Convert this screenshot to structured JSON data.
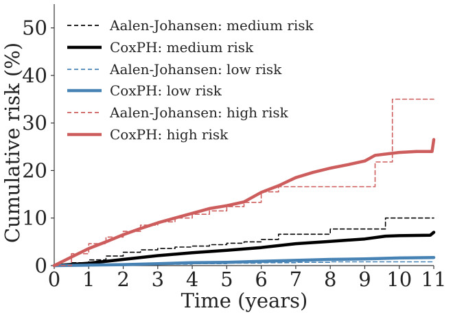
{
  "chart_data": {
    "type": "line",
    "xlabel": "Time (years)",
    "ylabel": "Cumulative risk (%)",
    "xlim": [
      0,
      11
    ],
    "ylim": [
      0,
      55
    ],
    "xticks": [
      "0",
      "1",
      "2",
      "3",
      "4",
      "5",
      "6",
      "7",
      "8",
      "9",
      "10",
      "11"
    ],
    "yticks": [
      "0",
      "10",
      "20",
      "30",
      "40",
      "50"
    ],
    "grid": false,
    "legend_position": "top-left",
    "series": [
      {
        "name": "Aalen-Johansen: medium risk",
        "color": "#000000",
        "style": "dashed",
        "step": true,
        "x": [
          0,
          0.5,
          1.0,
          1.5,
          2.0,
          2.5,
          3.0,
          3.5,
          4.0,
          4.5,
          5.0,
          5.5,
          6.0,
          6.5,
          7.0,
          7.5,
          8.0,
          8.5,
          9.0,
          9.6,
          10.0,
          11.0
        ],
        "y": [
          0,
          0.6,
          1.2,
          2.0,
          2.8,
          3.3,
          3.6,
          3.9,
          4.1,
          4.4,
          4.7,
          5.0,
          5.5,
          6.6,
          6.6,
          6.6,
          7.7,
          7.7,
          7.7,
          10.0,
          10.0,
          10.0
        ]
      },
      {
        "name": "CoxPH: medium risk",
        "color": "#000000",
        "style": "solid",
        "step": false,
        "x": [
          0,
          1,
          2,
          3,
          4,
          5,
          6,
          7,
          8,
          9,
          9.6,
          10,
          10.9,
          11
        ],
        "y": [
          0,
          0.5,
          1.3,
          2.1,
          2.7,
          3.2,
          3.8,
          4.6,
          5.1,
          5.6,
          6.2,
          6.3,
          6.4,
          7.0
        ]
      },
      {
        "name": "Aalen-Johansen: low risk",
        "color": "#4682b4",
        "style": "dashed",
        "step": true,
        "x": [
          0,
          1,
          2,
          3,
          4,
          5,
          6,
          7,
          8,
          9,
          10,
          11
        ],
        "y": [
          0,
          0.1,
          0.2,
          0.3,
          0.4,
          0.5,
          0.6,
          0.7,
          0.8,
          0.8,
          0.8,
          0.8
        ]
      },
      {
        "name": "CoxPH: low risk",
        "color": "#4682b4",
        "style": "solid",
        "step": false,
        "x": [
          0,
          1,
          2,
          3,
          4,
          5,
          6,
          7,
          8,
          9,
          10,
          11
        ],
        "y": [
          0,
          0.1,
          0.2,
          0.4,
          0.6,
          0.7,
          0.9,
          1.1,
          1.3,
          1.4,
          1.6,
          1.7
        ]
      },
      {
        "name": "Aalen-Johansen: high risk",
        "color": "#cd5c5c",
        "style": "dashed",
        "step": true,
        "x": [
          0,
          0.5,
          1.0,
          1.5,
          2.0,
          2.5,
          3.0,
          3.5,
          4.0,
          4.5,
          5.0,
          5.5,
          6.0,
          6.5,
          7.0,
          7.5,
          8.0,
          8.9,
          9.3,
          9.8,
          11.0
        ],
        "y": [
          0,
          2.5,
          4.6,
          6.0,
          7.2,
          8.5,
          9.2,
          10.0,
          10.8,
          11.5,
          12.4,
          13.3,
          15.5,
          16.6,
          16.6,
          16.6,
          16.6,
          16.6,
          21.8,
          35.0,
          35.0
        ]
      },
      {
        "name": "CoxPH: high risk",
        "color": "#cd5c5c",
        "style": "solid",
        "step": false,
        "x": [
          0,
          0.5,
          1,
          1.5,
          2,
          2.5,
          3,
          3.5,
          4,
          4.5,
          5,
          5.5,
          6,
          6.5,
          7,
          7.5,
          8,
          8.5,
          9,
          9.3,
          10,
          10.5,
          10.95,
          11
        ],
        "y": [
          0,
          1.8,
          3.6,
          5.0,
          6.5,
          7.8,
          9.0,
          10.0,
          11.0,
          12.0,
          12.6,
          13.4,
          15.4,
          16.8,
          18.5,
          19.6,
          20.5,
          21.2,
          22.0,
          23.2,
          23.8,
          24.0,
          24.0,
          26.5
        ]
      }
    ]
  }
}
